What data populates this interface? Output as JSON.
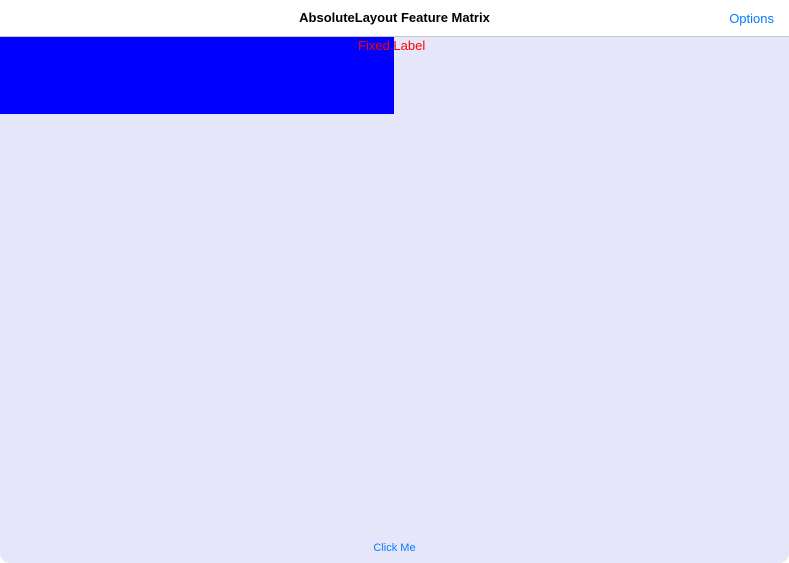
{
  "nav": {
    "title": "AbsoluteLayout Feature Matrix",
    "options_label": "Options"
  },
  "content": {
    "fixed_label": "Fixed Label",
    "button_label": "Click Me"
  },
  "colors": {
    "background": "#e6e6fa",
    "box": "#0000ff",
    "label": "#ff0000",
    "accent": "#0a7aff"
  }
}
